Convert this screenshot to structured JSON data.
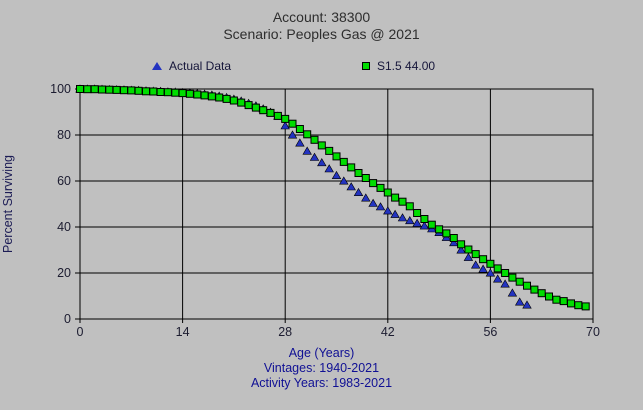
{
  "window": {
    "background": "#c0c0c0"
  },
  "chart_data": {
    "type": "scatter",
    "title": "Account: 38300",
    "subtitle": "Scenario: Peoples Gas @ 2021",
    "xlabel": "Age (Years)",
    "ylabel": "Percent Surviving",
    "footnotes": [
      "Vintages: 1940-2021",
      "Activity Years: 1983-2021"
    ],
    "xlim": [
      0,
      70
    ],
    "ylim": [
      0,
      100
    ],
    "xticks": [
      0,
      14,
      28,
      42,
      56,
      70
    ],
    "yticks": [
      0,
      20,
      40,
      60,
      80,
      100
    ],
    "grid": true,
    "legend_position": "top",
    "colors": {
      "background": "#c0c0c0",
      "grid": "#000000",
      "actual_marker": "#2333c0",
      "fit_marker": "#00dd00",
      "tick_text": "#1c1c30",
      "footnote_text": "#101094"
    },
    "series": [
      {
        "name": "Actual Data",
        "marker": "triangle",
        "color": "#2333c0",
        "x": [
          0,
          1,
          2,
          3,
          4,
          5,
          6,
          7,
          8,
          9,
          10,
          11,
          12,
          13,
          14,
          15,
          16,
          17,
          18,
          19,
          20,
          21,
          22,
          23,
          24,
          25,
          26,
          27,
          28,
          29,
          30,
          31,
          32,
          33,
          34,
          35,
          36,
          37,
          38,
          39,
          40,
          41,
          42,
          43,
          44,
          45,
          46,
          47,
          48,
          49,
          50,
          51,
          52,
          53,
          54,
          55,
          56,
          57,
          58,
          59,
          60,
          61
        ],
        "y": [
          100,
          100,
          100,
          99.9,
          99.8,
          99.7,
          99.6,
          99.5,
          99.4,
          99.2,
          99.1,
          99.0,
          98.8,
          98.7,
          98.5,
          98.3,
          98.1,
          97.8,
          97.4,
          96.9,
          96.3,
          95.6,
          94.8,
          93.8,
          92.7,
          91.4,
          89.9,
          88.2,
          84.0,
          80.0,
          76.5,
          73.0,
          70.3,
          68.0,
          65.3,
          62.4,
          60.0,
          57.5,
          55.0,
          52.6,
          50.3,
          48.8,
          47.0,
          45.5,
          44.0,
          42.8,
          41.6,
          40.5,
          39.2,
          37.6,
          35.5,
          33.2,
          30.0,
          26.8,
          23.5,
          21.7,
          20.0,
          17.4,
          15.2,
          11.3,
          7.4,
          6.1
        ]
      },
      {
        "name": "S1.5 44.00",
        "marker": "square",
        "color": "#00dd00",
        "x": [
          0,
          1,
          2,
          3,
          4,
          5,
          6,
          7,
          8,
          9,
          10,
          11,
          12,
          13,
          14,
          15,
          16,
          17,
          18,
          19,
          20,
          21,
          22,
          23,
          24,
          25,
          26,
          27,
          28,
          29,
          30,
          31,
          32,
          33,
          34,
          35,
          36,
          37,
          38,
          39,
          40,
          41,
          42,
          43,
          44,
          45,
          46,
          47,
          48,
          49,
          50,
          51,
          52,
          53,
          54,
          55,
          56,
          57,
          58,
          59,
          60,
          61,
          62,
          63,
          64,
          65,
          66,
          67,
          68,
          69
        ],
        "y": [
          100,
          99.9,
          99.9,
          99.8,
          99.7,
          99.6,
          99.5,
          99.4,
          99.2,
          99.0,
          98.9,
          98.7,
          98.6,
          98.4,
          98.2,
          97.9,
          97.6,
          97.2,
          96.8,
          96.3,
          95.7,
          95.0,
          94.1,
          93.0,
          91.9,
          90.8,
          89.6,
          88.3,
          87.0,
          84.9,
          82.6,
          80.3,
          77.9,
          75.5,
          73.1,
          70.7,
          68.3,
          65.9,
          63.5,
          61.3,
          59.1,
          57.0,
          55.0,
          52.8,
          51.0,
          49.0,
          46.1,
          43.5,
          41.0,
          39.0,
          37.2,
          35.2,
          32.5,
          30.2,
          28.2,
          26.0,
          24.0,
          22.0,
          20.0,
          18.0,
          16.2,
          14.5,
          12.8,
          11.2,
          9.8,
          8.4,
          7.8,
          6.8,
          6.0,
          5.5
        ]
      }
    ]
  }
}
